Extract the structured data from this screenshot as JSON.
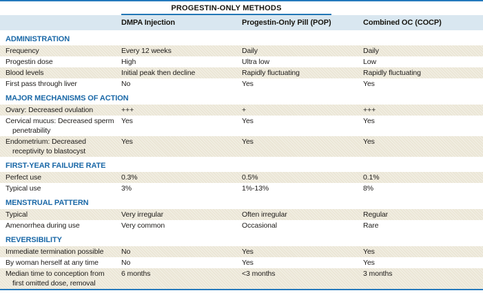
{
  "table": {
    "spanner_title": "PROGESTIN-ONLY METHODS",
    "columns": [
      "DMPA Injection",
      "Progestin-Only Pill (POP)",
      "Combined OC (COCP)"
    ],
    "sections": [
      {
        "header": "ADMINISTRATION",
        "rows": [
          {
            "label": "Frequency",
            "values": [
              "Every 12 weeks",
              "Daily",
              "Daily"
            ]
          },
          {
            "label": "Progestin dose",
            "values": [
              "High",
              "Ultra low",
              "Low"
            ]
          },
          {
            "label": "Blood levels",
            "values": [
              "Initial peak then decline",
              "Rapidly fluctuating",
              "Rapidly fluctuating"
            ]
          },
          {
            "label": "First pass through liver",
            "values": [
              "No",
              "Yes",
              "Yes"
            ]
          }
        ]
      },
      {
        "header": "MAJOR MECHANISMS OF ACTION",
        "rows": [
          {
            "label": "Ovary: Decreased ovulation",
            "values": [
              "+++",
              "+",
              "+++"
            ]
          },
          {
            "label": "Cervical mucus: Decreased sperm penetrability",
            "values": [
              "Yes",
              "Yes",
              "Yes"
            ]
          },
          {
            "label": "Endometrium: Decreased receptivity to blastocyst",
            "values": [
              "Yes",
              "Yes",
              "Yes"
            ]
          }
        ]
      },
      {
        "header": "FIRST-YEAR FAILURE RATE",
        "rows": [
          {
            "label": "Perfect use",
            "values": [
              "0.3%",
              "0.5%",
              "0.1%"
            ]
          },
          {
            "label": "Typical use",
            "values": [
              "3%",
              "1%-13%",
              "8%"
            ]
          }
        ]
      },
      {
        "header": "MENSTRUAL PATTERN",
        "rows": [
          {
            "label": "Typical",
            "values": [
              "Very irregular",
              "Often irregular",
              "Regular"
            ]
          },
          {
            "label": "Amenorrhea during use",
            "values": [
              "Very common",
              "Occasional",
              "Rare"
            ]
          }
        ]
      },
      {
        "header": "REVERSIBILITY",
        "rows": [
          {
            "label": "Immediate termination possible",
            "values": [
              "No",
              "Yes",
              "Yes"
            ]
          },
          {
            "label": "By woman herself at any time",
            "values": [
              "No",
              "Yes",
              "Yes"
            ]
          },
          {
            "label": "Median time to conception from first omitted dose, removal",
            "values": [
              "6 months",
              "<3 months",
              "3 months"
            ]
          }
        ]
      }
    ]
  },
  "colors": {
    "accent_blue_rule": "#2379bd",
    "section_header_text": "#1a68a7",
    "column_header_bg": "#d9e7f0",
    "shaded_row_bg": "#ebe6d6"
  }
}
